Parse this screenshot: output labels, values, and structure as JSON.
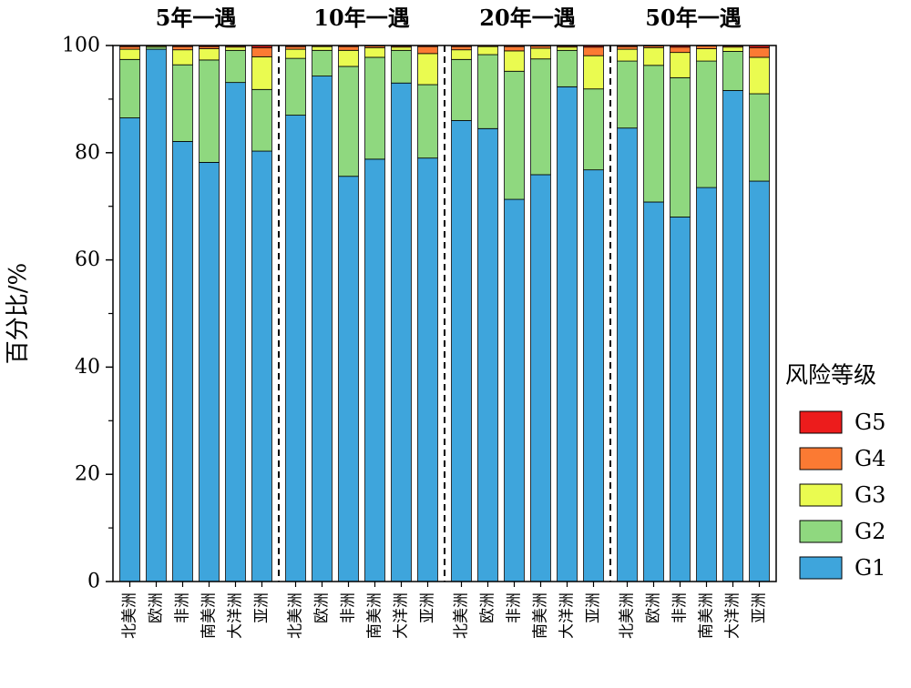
{
  "chart_data": {
    "type": "bar",
    "stacked": true,
    "ylabel": "百分比/%",
    "ylim": [
      0,
      100
    ],
    "yticks": [
      0,
      20,
      40,
      60,
      80,
      100
    ],
    "groups": [
      "5年一遇",
      "10年一遇",
      "20年一遇",
      "50年一遇"
    ],
    "categories": [
      "北美洲",
      "欧洲",
      "非洲",
      "南美洲",
      "大洋洲",
      "亚洲"
    ],
    "legend_title": "风险等级",
    "legend_position": "right",
    "series": [
      {
        "name": "G1",
        "color": "#3ea5dc",
        "values": [
          [
            86.5,
            99.3,
            82.1,
            78.2,
            93.1,
            80.3
          ],
          [
            87.0,
            94.3,
            75.6,
            78.8,
            93.0,
            79.0
          ],
          [
            86.0,
            84.5,
            71.3,
            75.9,
            92.3,
            76.8
          ],
          [
            84.6,
            70.8,
            68.0,
            73.5,
            91.6,
            74.7
          ]
        ]
      },
      {
        "name": "G2",
        "color": "#8fd87f",
        "values": [
          [
            10.9,
            0.4,
            14.3,
            19.1,
            6.0,
            11.5
          ],
          [
            10.6,
            4.8,
            20.5,
            19.0,
            6.1,
            13.7
          ],
          [
            11.4,
            13.8,
            23.9,
            21.6,
            6.8,
            15.1
          ],
          [
            12.5,
            25.5,
            26.0,
            23.6,
            7.3,
            16.3
          ]
        ]
      },
      {
        "name": "G3",
        "color": "#eafb50",
        "values": [
          [
            1.9,
            0.2,
            2.8,
            2.1,
            0.6,
            6.1
          ],
          [
            1.7,
            0.7,
            3.0,
            1.8,
            0.6,
            5.8
          ],
          [
            1.8,
            1.5,
            3.8,
            2.0,
            0.6,
            6.2
          ],
          [
            2.2,
            3.3,
            4.7,
            2.3,
            0.8,
            6.8
          ]
        ]
      },
      {
        "name": "G4",
        "color": "#fb7a33",
        "values": [
          [
            0.5,
            0.1,
            0.6,
            0.4,
            0.2,
            1.7
          ],
          [
            0.5,
            0.2,
            0.7,
            0.3,
            0.2,
            1.3
          ],
          [
            0.6,
            0.2,
            0.8,
            0.4,
            0.2,
            1.6
          ],
          [
            0.5,
            0.3,
            1.0,
            0.5,
            0.2,
            1.8
          ]
        ]
      },
      {
        "name": "G5",
        "color": "#ec1c1c",
        "values": [
          [
            0.2,
            0.0,
            0.2,
            0.2,
            0.1,
            0.4
          ],
          [
            0.2,
            0.0,
            0.2,
            0.1,
            0.1,
            0.2
          ],
          [
            0.2,
            0.0,
            0.2,
            0.1,
            0.1,
            0.3
          ],
          [
            0.2,
            0.1,
            0.3,
            0.1,
            0.1,
            0.4
          ]
        ]
      }
    ],
    "legend_order": [
      "G5",
      "G4",
      "G3",
      "G2",
      "G1"
    ],
    "separators": "dashed"
  }
}
